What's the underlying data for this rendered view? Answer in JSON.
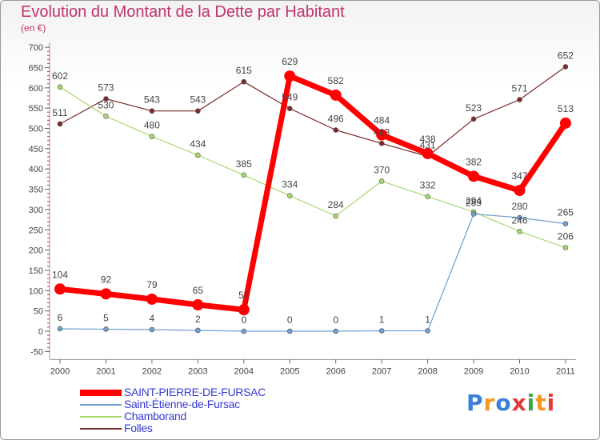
{
  "title": "Evolution du Montant de la Dette par Habitant",
  "subtitle": "(en €)",
  "brand": "Proxiti",
  "chart_data": {
    "type": "line",
    "title": "Evolution du Montant de la Dette par Habitant",
    "subtitle": "(en €)",
    "x": [
      "2000",
      "2001",
      "2002",
      "2003",
      "2004",
      "2005",
      "2006",
      "2007",
      "2008",
      "2009",
      "2010",
      "2011"
    ],
    "ylim": [
      -50,
      700
    ],
    "yticks": [
      -50,
      0,
      50,
      100,
      150,
      200,
      250,
      300,
      350,
      400,
      450,
      500,
      550,
      600,
      650,
      700
    ],
    "grid": false,
    "legend_position": "bottom",
    "series": [
      {
        "name": "SAINT-PIERRE-DE-FURSAC",
        "color": "#ff0000",
        "values": [
          104,
          92,
          79,
          65,
          53,
          629,
          582,
          484,
          438,
          382,
          347,
          513
        ]
      },
      {
        "name": "Saint-Étienne-de-Fursac",
        "color": "#6f9fce",
        "values": [
          6,
          5,
          4,
          2,
          0,
          0,
          0,
          1,
          1,
          289,
          280,
          265
        ]
      },
      {
        "name": "Chamborand",
        "color": "#a6d86f",
        "values": [
          602,
          530,
          480,
          434,
          385,
          334,
          284,
          370,
          332,
          294,
          246,
          206
        ]
      },
      {
        "name": "Folles",
        "color": "#7a2b2b",
        "values": [
          511,
          573,
          543,
          543,
          615,
          549,
          496,
          463,
          431,
          523,
          571,
          652
        ]
      }
    ]
  }
}
